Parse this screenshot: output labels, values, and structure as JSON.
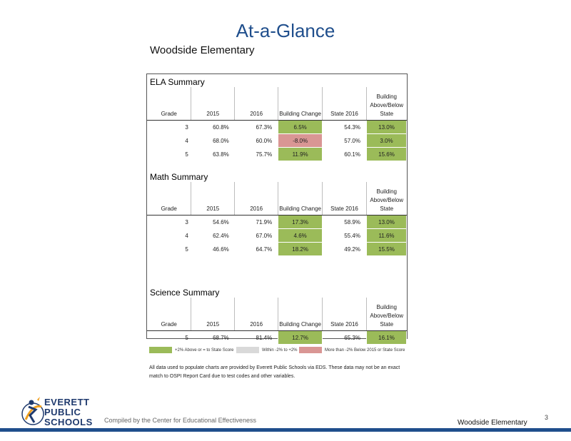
{
  "title": "At-a-Glance",
  "school": "Woodside Elementary",
  "headers": [
    "Grade",
    "2015",
    "2016",
    "Building Change",
    "State 2016",
    "Building Above/Below State"
  ],
  "sections": [
    {
      "title": "ELA Summary",
      "rows": [
        {
          "grade": "3",
          "y2015": "60.8%",
          "y2016": "67.3%",
          "change": "6.5%",
          "state": "54.3%",
          "diff": "13.0%",
          "change_color": "green",
          "diff_color": "green"
        },
        {
          "grade": "4",
          "y2015": "68.0%",
          "y2016": "60.0%",
          "change": "-8.0%",
          "state": "57.0%",
          "diff": "3.0%",
          "change_color": "red",
          "diff_color": "green"
        },
        {
          "grade": "5",
          "y2015": "63.8%",
          "y2016": "75.7%",
          "change": "11.9%",
          "state": "60.1%",
          "diff": "15.6%",
          "change_color": "green",
          "diff_color": "green"
        }
      ]
    },
    {
      "title": "Math Summary",
      "rows": [
        {
          "grade": "3",
          "y2015": "54.6%",
          "y2016": "71.9%",
          "change": "17.3%",
          "state": "58.9%",
          "diff": "13.0%",
          "change_color": "green",
          "diff_color": "green"
        },
        {
          "grade": "4",
          "y2015": "62.4%",
          "y2016": "67.0%",
          "change": "4.6%",
          "state": "55.4%",
          "diff": "11.6%",
          "change_color": "green",
          "diff_color": "green"
        },
        {
          "grade": "5",
          "y2015": "46.6%",
          "y2016": "64.7%",
          "change": "18.2%",
          "state": "49.2%",
          "diff": "15.5%",
          "change_color": "green",
          "diff_color": "green"
        }
      ]
    },
    {
      "title": "Science Summary",
      "rows": [
        {
          "grade": "5",
          "y2015": "68.7%",
          "y2016": "81.4%",
          "change": "12.7%",
          "state": "65.3%",
          "diff": "16.1%",
          "change_color": "green",
          "diff_color": "green"
        }
      ]
    }
  ],
  "legend": [
    {
      "label": "+2% Above or = to State Score",
      "color": "#9bbb59"
    },
    {
      "label": "Within -2% to +2%",
      "color": "#d9d9d9"
    },
    {
      "label": "More than -2% Below 2015 or State Score",
      "color": "#d99694"
    }
  ],
  "note": "All data used to populate charts are provided by Everett Public Schools via EDS. These data may not be an exact match to OSPI Report Card due to test codes and other variables.",
  "logo": {
    "line1": "EVERETT",
    "line2": "PUBLIC",
    "line3": "SCHOOLS"
  },
  "compiled": "Compiled by the Center for Educational Effectiveness",
  "footer_school": "Woodside Elementary",
  "page_number": "3",
  "colors": {
    "title": "#1f4e8c",
    "green": "#9bbb59",
    "red": "#d99694"
  }
}
